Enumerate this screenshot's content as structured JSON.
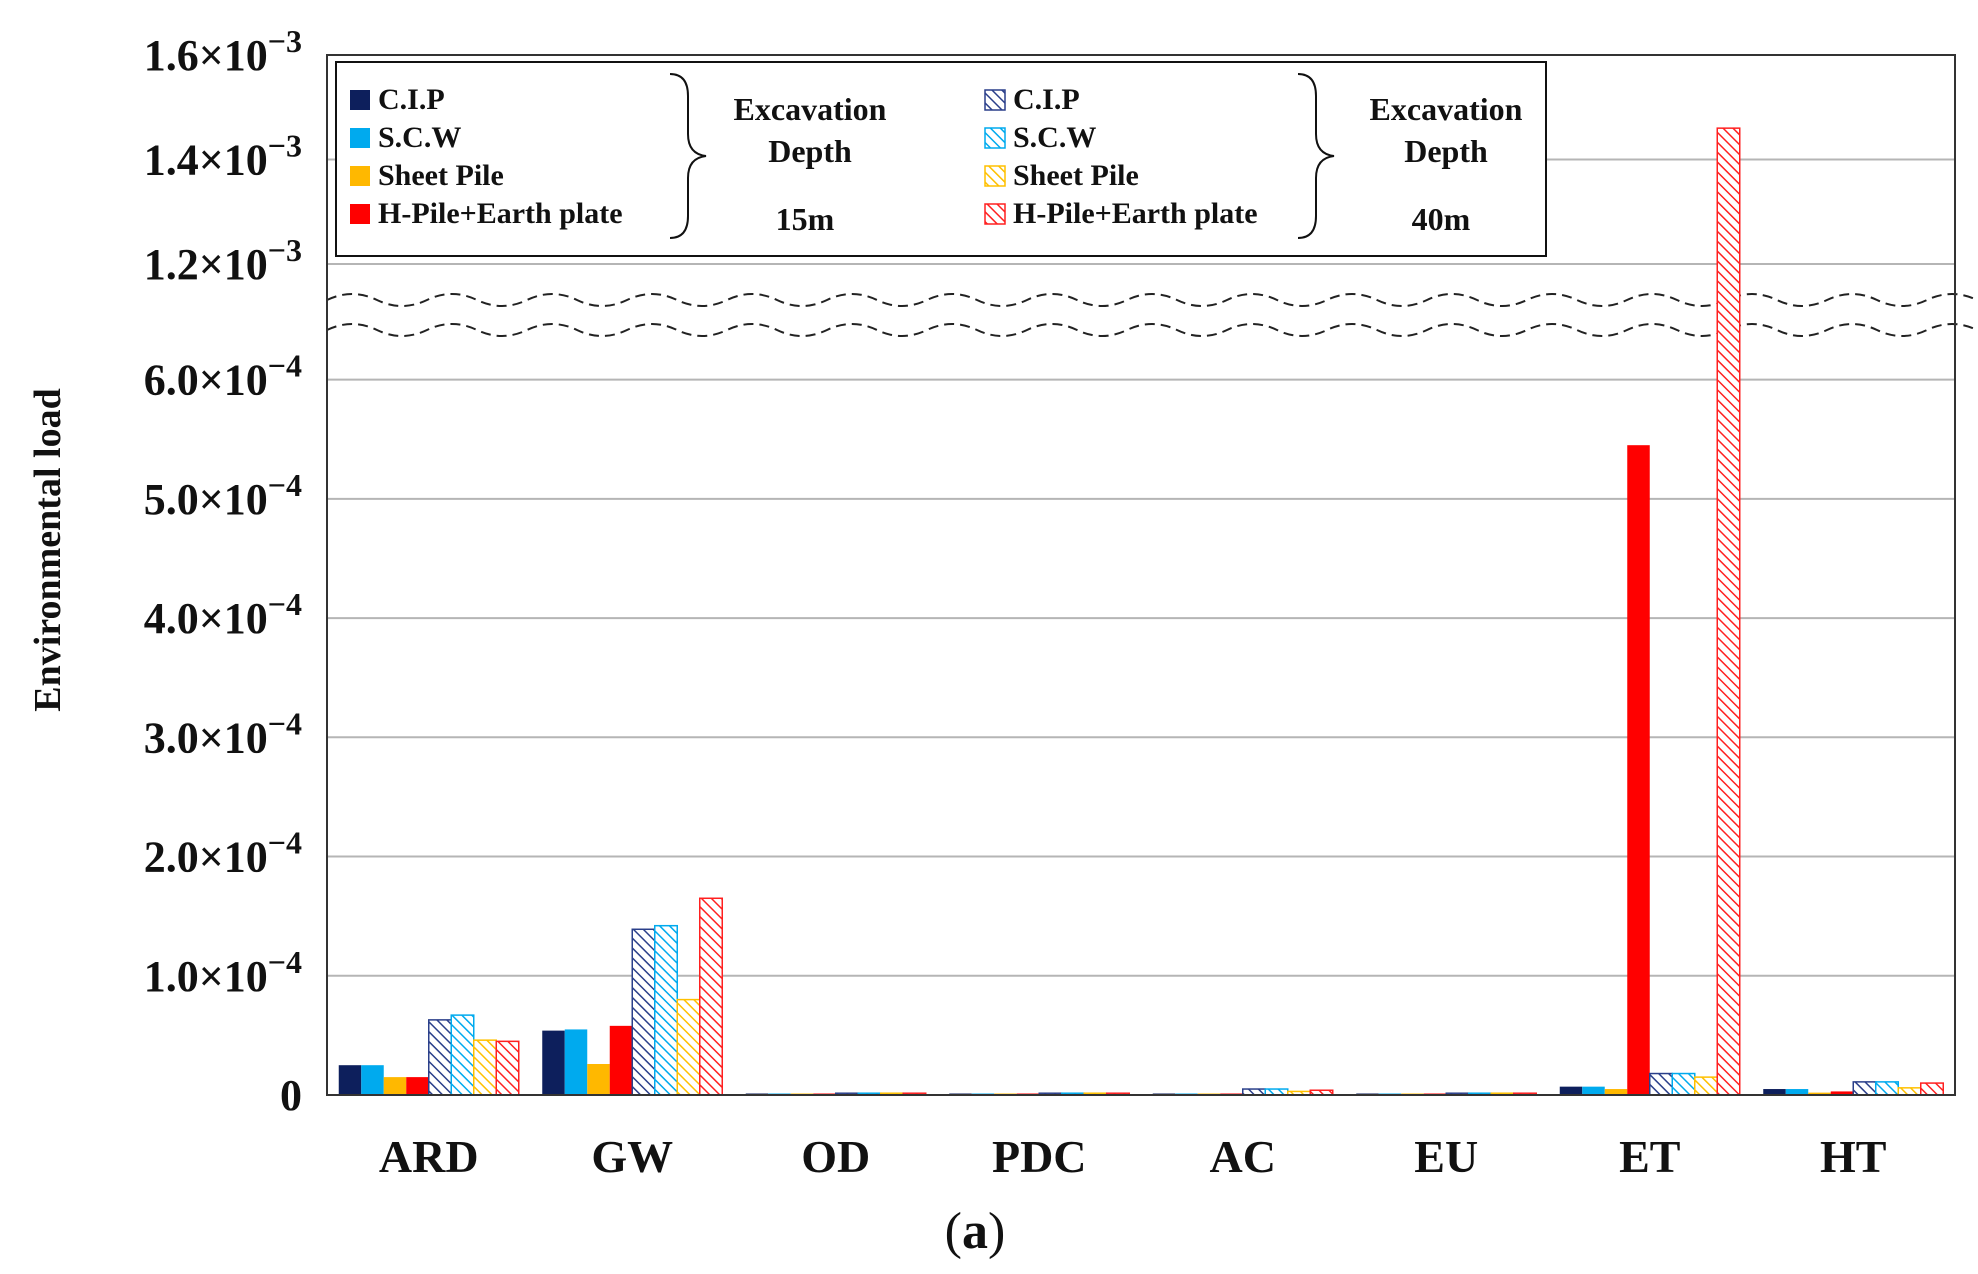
{
  "chart_data": {
    "type": "bar",
    "title": "",
    "xlabel": "",
    "ylabel": "Environmental load",
    "caption": {
      "open": "(",
      "letter": "a",
      "close": ")"
    },
    "categories": [
      "ARD",
      "GW",
      "OD",
      "PDC",
      "AC",
      "EU",
      "ET",
      "HT"
    ],
    "axis_break": {
      "lower_max": 0.00065,
      "upper_min": 0.0012
    },
    "ylim": [
      0,
      0.0016
    ],
    "grid": true,
    "y_ticks": [
      {
        "value": 0,
        "mantissa": "0",
        "exp": ""
      },
      {
        "value": 0.0001,
        "mantissa": "1.0×10",
        "exp": "−4"
      },
      {
        "value": 0.0002,
        "mantissa": "2.0×10",
        "exp": "−4"
      },
      {
        "value": 0.0003,
        "mantissa": "3.0×10",
        "exp": "−4"
      },
      {
        "value": 0.0004,
        "mantissa": "4.0×10",
        "exp": "−4"
      },
      {
        "value": 0.0005,
        "mantissa": "5.0×10",
        "exp": "−4"
      },
      {
        "value": 0.0006,
        "mantissa": "6.0×10",
        "exp": "−4"
      },
      {
        "value": 0.0012,
        "mantissa": "1.2×10",
        "exp": "−3"
      },
      {
        "value": 0.0014,
        "mantissa": "1.4×10",
        "exp": "−3"
      },
      {
        "value": 0.0016,
        "mantissa": "1.6×10",
        "exp": "−3"
      }
    ],
    "series": [
      {
        "name": "C.I.P",
        "depth": "15m",
        "pattern": "solid",
        "color": "#0d1f5c",
        "values": [
          2.5e-05,
          5.4e-05,
          1e-06,
          1e-06,
          1e-06,
          1e-06,
          7e-06,
          5e-06
        ]
      },
      {
        "name": "S.C.W",
        "depth": "15m",
        "pattern": "solid",
        "color": "#00aaee",
        "values": [
          2.5e-05,
          5.5e-05,
          1e-06,
          1e-06,
          1e-06,
          1e-06,
          7e-06,
          5e-06
        ]
      },
      {
        "name": "Sheet Pile",
        "depth": "15m",
        "pattern": "solid",
        "color": "#ffb800",
        "values": [
          1.5e-05,
          2.6e-05,
          1e-06,
          1e-06,
          1e-06,
          1e-06,
          5e-06,
          2e-06
        ]
      },
      {
        "name": "H-Pile+Earth plate",
        "depth": "15m",
        "pattern": "solid",
        "color": "#ff0000",
        "values": [
          1.5e-05,
          5.8e-05,
          1e-06,
          1e-06,
          1e-06,
          1e-06,
          0.000545,
          3e-06
        ]
      },
      {
        "name": "C.I.P",
        "depth": "40m",
        "pattern": "hatched",
        "color": "#2a3f8a",
        "values": [
          6.3e-05,
          0.000139,
          1.5e-06,
          1.5e-06,
          5e-06,
          1.5e-06,
          1.8e-05,
          1.1e-05
        ]
      },
      {
        "name": "S.C.W",
        "depth": "40m",
        "pattern": "hatched",
        "color": "#00aaee",
        "values": [
          6.7e-05,
          0.000142,
          1.5e-06,
          1.5e-06,
          5e-06,
          1.5e-06,
          1.8e-05,
          1.1e-05
        ]
      },
      {
        "name": "Sheet Pile",
        "depth": "40m",
        "pattern": "hatched",
        "color": "#ffc000",
        "values": [
          4.6e-05,
          8e-05,
          1.5e-06,
          1.5e-06,
          3e-06,
          1.5e-06,
          1.5e-05,
          6e-06
        ]
      },
      {
        "name": "H-Pile+Earth plate",
        "depth": "40m",
        "pattern": "hatched",
        "color": "#ff2020",
        "values": [
          4.5e-05,
          0.000165,
          1.5e-06,
          1.5e-06,
          4e-06,
          1.5e-06,
          0.00146,
          1e-05
        ]
      }
    ],
    "legend": {
      "placement": "top",
      "groups": [
        {
          "title_line1": "Excavation",
          "title_line2": "Depth",
          "depth": "15m",
          "pattern": "solid"
        },
        {
          "title_line1": "Excavation",
          "title_line2": "Depth",
          "depth": "40m",
          "pattern": "hatched"
        }
      ]
    }
  }
}
